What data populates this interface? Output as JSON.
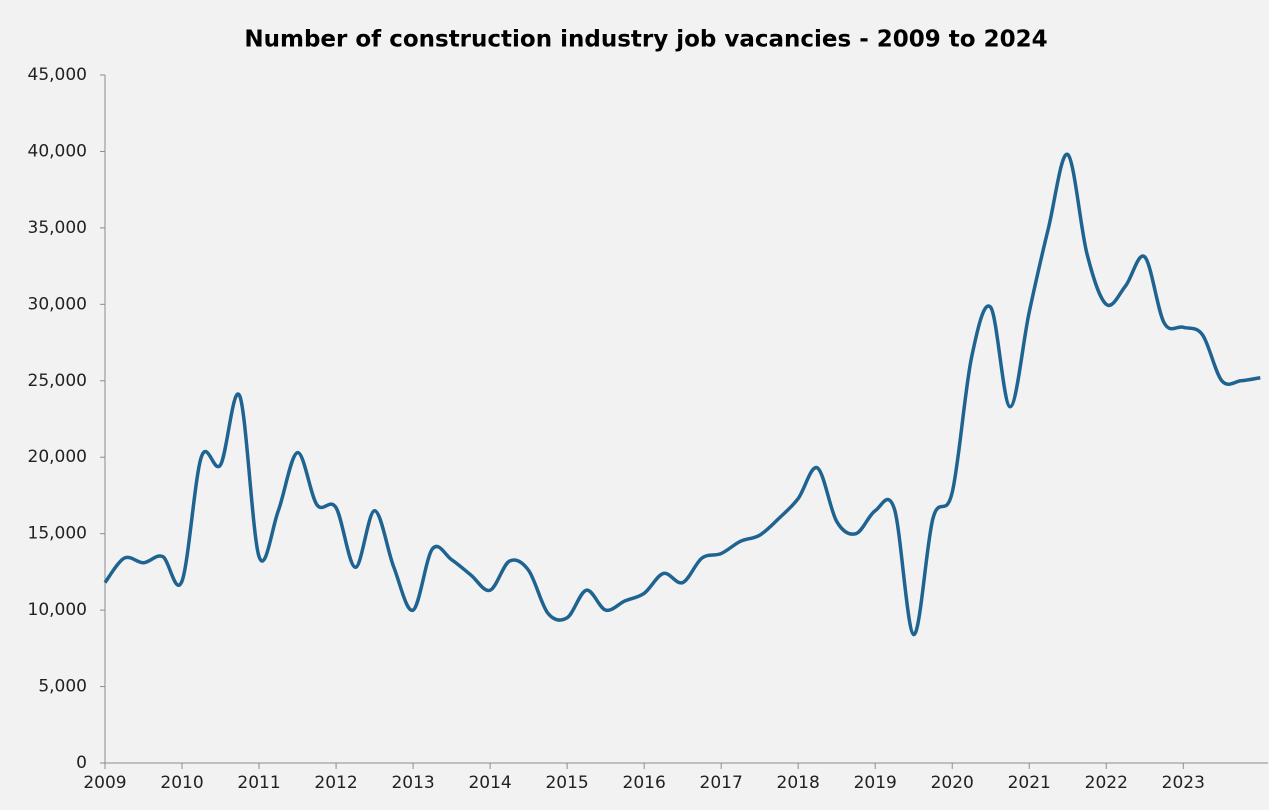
{
  "chart_data": {
    "type": "line",
    "title": "Number of construction industry job vacancies - 2009 to 2024",
    "x": [
      2009,
      2009.25,
      2009.5,
      2009.75,
      2010,
      2010.25,
      2010.5,
      2010.75,
      2011,
      2011.25,
      2011.5,
      2011.75,
      2012,
      2012.25,
      2012.5,
      2012.75,
      2013,
      2013.25,
      2013.5,
      2013.75,
      2014,
      2014.25,
      2014.5,
      2014.75,
      2015,
      2015.25,
      2015.5,
      2015.75,
      2016,
      2016.25,
      2016.5,
      2016.75,
      2017,
      2017.25,
      2017.5,
      2017.75,
      2018,
      2018.25,
      2018.5,
      2018.75,
      2019,
      2019.25,
      2019.5,
      2019.75,
      2020,
      2020.25,
      2020.5,
      2020.75,
      2021,
      2021.25,
      2021.5,
      2021.75,
      2022,
      2022.25,
      2022.5,
      2022.75,
      2023,
      2023.25,
      2023.5,
      2023.75,
      2024
    ],
    "series": [
      {
        "name": "Job vacancies",
        "color": "#1f6391",
        "values": [
          11800,
          13400,
          13100,
          13500,
          11900,
          20000,
          19500,
          24000,
          13500,
          16500,
          20300,
          16900,
          16700,
          12800,
          16500,
          12800,
          10000,
          14000,
          13300,
          12300,
          11300,
          13200,
          12600,
          9800,
          9500,
          11300,
          10000,
          10600,
          11100,
          12400,
          11800,
          13400,
          13700,
          14500,
          14900,
          16000,
          17300,
          19300,
          15800,
          15000,
          16500,
          16600,
          8400,
          16000,
          17700,
          26500,
          29800,
          23300,
          29500,
          35000,
          39800,
          33300,
          30000,
          31200,
          33100,
          28800,
          28500,
          28000,
          25000,
          25000,
          25200
        ]
      }
    ],
    "xlim": [
      2009,
      2024.1
    ],
    "xticks": [
      2009,
      2010,
      2011,
      2012,
      2013,
      2014,
      2015,
      2016,
      2017,
      2018,
      2019,
      2020,
      2021,
      2022,
      2023
    ],
    "ylim": [
      0,
      45000
    ],
    "yticks": [
      0,
      {
        "value": 5000,
        "label": "5,000"
      },
      {
        "value": 10000,
        "label": "10,000"
      },
      {
        "value": 15000,
        "label": "15,000"
      },
      {
        "value": 20000,
        "label": "20,000"
      },
      {
        "value": 25000,
        "label": "25,000"
      },
      {
        "value": 30000,
        "label": "30,000"
      },
      {
        "value": 35000,
        "label": "35,000"
      },
      {
        "value": 40000,
        "label": "40,000"
      },
      {
        "value": 45000,
        "label": "45,000"
      }
    ]
  }
}
